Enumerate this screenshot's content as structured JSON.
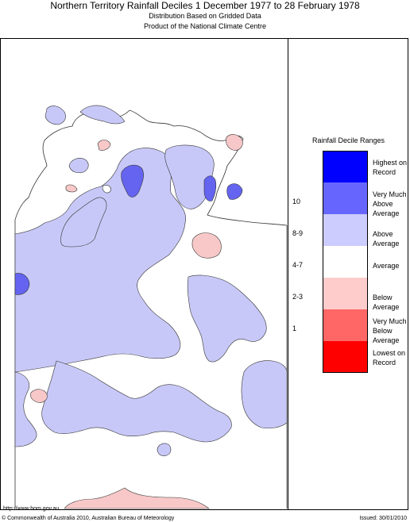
{
  "header": {
    "title": "Northern Territory Rainfall Deciles     1 December 1977 to 28 February 1978",
    "subtitle1": "Distribution Based on Gridded Data",
    "subtitle2": "Product of the National Climate Centre"
  },
  "legend": {
    "title": "Rainfall Decile Ranges",
    "items": [
      {
        "label": "Highest on Record",
        "range": "",
        "color": "#0000ff"
      },
      {
        "label": "Very Much Above Average",
        "range": "10",
        "color": "#6666ff"
      },
      {
        "label": "Above Average",
        "range": "8-9",
        "color": "#ccccff"
      },
      {
        "label": "Average",
        "range": "4-7",
        "color": "#ffffff"
      },
      {
        "label": "Below Average",
        "range": "2-3",
        "color": "#ffcccc"
      },
      {
        "label": "Very Much Below Average",
        "range": "1",
        "color": "#ff6666"
      },
      {
        "label": "Lowest on Record",
        "range": "",
        "color": "#ff0000"
      }
    ]
  },
  "footer": {
    "url": "http://www.bom.gov.au",
    "copyright": "© Commonwealth of Australia 2010, Australian Bureau of Meteorology",
    "issued": "Issued: 30/01/2010"
  },
  "colors": {
    "above_average": "#c8c8f8",
    "very_much_above_average": "#6464f0",
    "below_average": "#f8c8c8",
    "average": "#ffffff",
    "outline": "#333333"
  }
}
